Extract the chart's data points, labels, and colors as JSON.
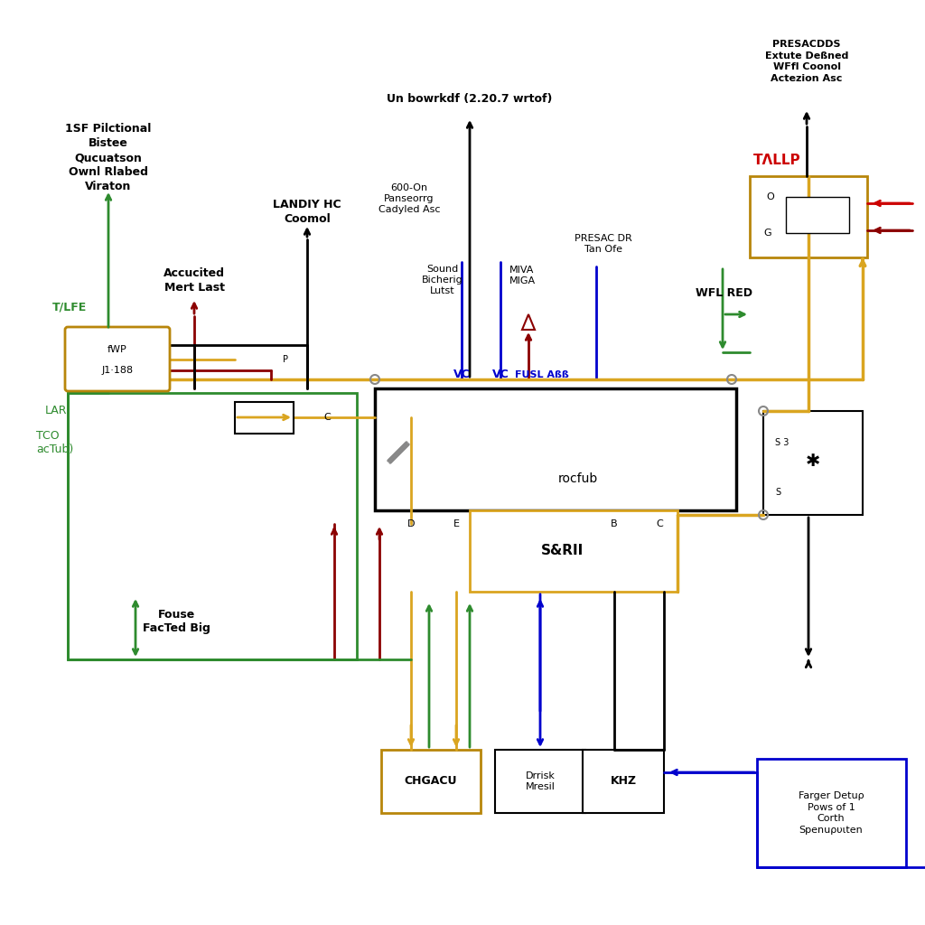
{
  "bg_color": "#ffffff",
  "colors": {
    "black": "#000000",
    "green": "#2e8b2e",
    "dark_red": "#8b0000",
    "gold": "#daa520",
    "blue": "#0000cd",
    "red": "#cc0000",
    "gray": "#888888",
    "dk_gold": "#b8860b"
  },
  "labels": {
    "top_left_block": "1SF Pilctional\nBistee\nQucuatson\nOwnl Rlabed\nViraton",
    "TLFE": "T/LFE",
    "j1_symbol": "fWP",
    "j1_188": "J1·188",
    "LAR": "LAR",
    "TCO": "TCO\nacTub)",
    "accucited": "Accucited\nMert Last",
    "landiy": "LANDIY HC\nCoomol",
    "un_bowrkdf": "Un bowrkdf (2.20.7 wrtof)",
    "paneseorrg": "600-On\nPanseorrg\nCadyled Asc",
    "sound_bicherig": "Sound\nBicherig\nLutst",
    "miva_miga": "MIVA\nMIGA",
    "presac_dr": "PRESAC DR\nTan Ofe",
    "wfl_red": "WFL RED",
    "presacdds": "PRESACDDS\nExtute Deßned\nWFfl Coonol\nActezion Asc",
    "TLLP": "TΛLLP",
    "VC1": "VC",
    "VC2": "VC",
    "FUSL_AS": "FUSL Aßß",
    "rocfub": "rocfub",
    "S_RII": "S&RII",
    "fouse": "Fouse\nFacTed Big",
    "CHGACU": "CHGACU",
    "Drrisk": "Drrisk\nMresil",
    "KHZ": "KHZ",
    "farger": "Farger Detuρ\nPows of 1\nCorth\nSpenuρυιten",
    "D_label": "D",
    "E_label": "E",
    "B_label": "B",
    "C_label": "C",
    "O_label": "O",
    "G_label": "G",
    "S3_label": "S 3",
    "S_label": "S",
    "relay_C": "C",
    "relay_P": "P"
  }
}
